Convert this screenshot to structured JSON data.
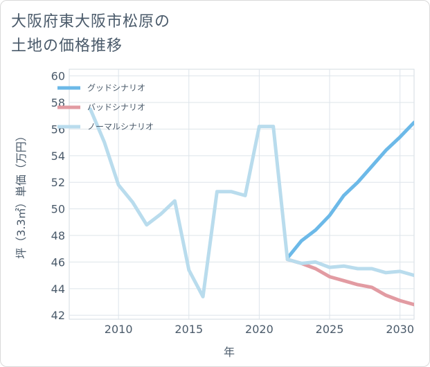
{
  "title_lines": [
    "大阪府東大阪市松原の",
    "土地の価格推移"
  ],
  "chart_data": {
    "type": "line",
    "title": "大阪府東大阪市松原の土地の価格推移",
    "xlabel": "年",
    "ylabel": "坪（3.3㎡）単価（万円）",
    "xlim": [
      2006.5,
      2031
    ],
    "ylim": [
      41.7,
      60.5
    ],
    "xticks": [
      2010,
      2015,
      2020,
      2025,
      2030
    ],
    "yticks": [
      42,
      44,
      46,
      48,
      50,
      52,
      54,
      56,
      58,
      60
    ],
    "grid": true,
    "legend_position": "top-left",
    "series": [
      {
        "name": "グッドシナリオ",
        "color": "#6cb9e8",
        "x": [
          2022,
          2023,
          2024,
          2025,
          2026,
          2027,
          2028,
          2029,
          2030,
          2031
        ],
        "values": [
          46.3,
          47.6,
          48.4,
          49.5,
          51.0,
          52.0,
          53.2,
          54.4,
          55.4,
          56.5
        ]
      },
      {
        "name": "バッドシナリオ",
        "color": "#e29ba2",
        "x": [
          2022,
          2023,
          2024,
          2025,
          2026,
          2027,
          2028,
          2029,
          2030,
          2031
        ],
        "values": [
          46.2,
          45.9,
          45.5,
          44.9,
          44.6,
          44.3,
          44.1,
          43.5,
          43.1,
          42.8
        ]
      },
      {
        "name": "ノーマルシナリオ",
        "color": "#b9dced",
        "x": [
          2008,
          2009,
          2010,
          2011,
          2012,
          2013,
          2014,
          2015,
          2016,
          2017,
          2018,
          2019,
          2020,
          2021,
          2022,
          2023,
          2024,
          2025,
          2026,
          2027,
          2028,
          2029,
          2030,
          2031
        ],
        "values": [
          57.5,
          55.0,
          51.8,
          50.5,
          48.8,
          49.6,
          50.6,
          45.4,
          43.4,
          51.3,
          51.3,
          51.0,
          56.2,
          56.2,
          46.2,
          45.9,
          46.0,
          45.6,
          45.7,
          45.5,
          45.5,
          45.2,
          45.3,
          45.0
        ]
      }
    ]
  }
}
